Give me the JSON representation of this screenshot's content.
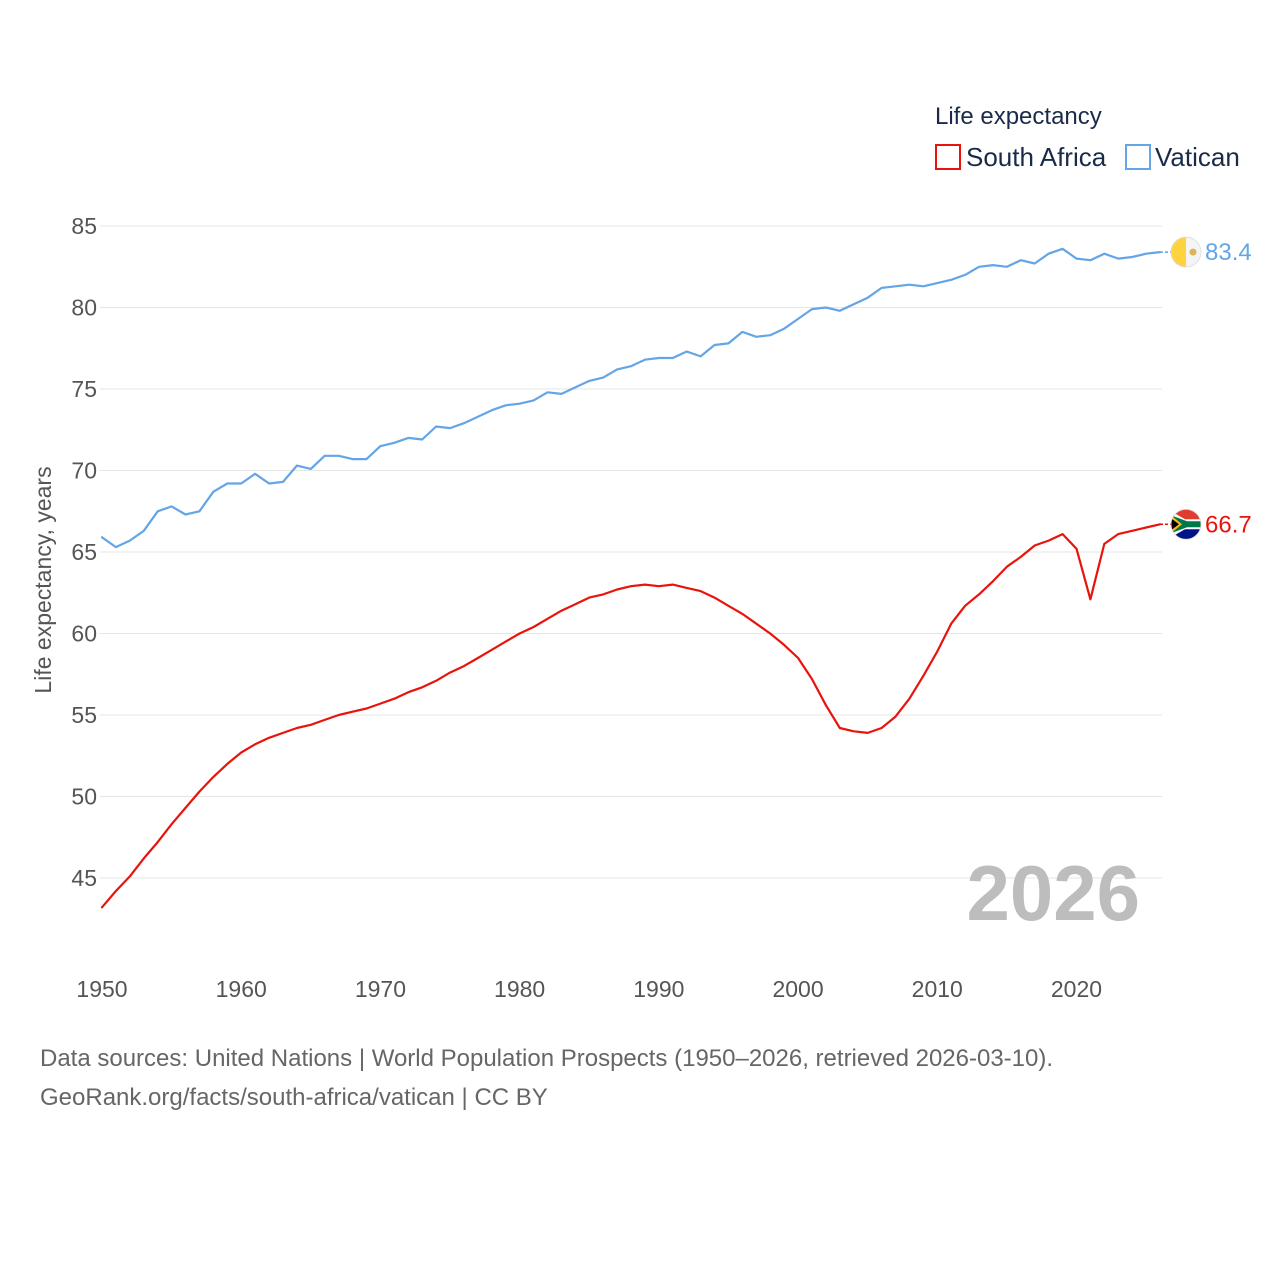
{
  "chart_data": {
    "type": "line",
    "title": "",
    "xlabel": "",
    "ylabel": "Life expectancy, years",
    "xlim": [
      1950,
      2026
    ],
    "ylim": [
      42,
      86
    ],
    "x_ticks": [
      1950,
      1960,
      1970,
      1980,
      1990,
      2000,
      2010,
      2020
    ],
    "y_ticks": [
      45,
      50,
      55,
      60,
      65,
      70,
      75,
      80,
      85
    ],
    "legend_title": "Life expectancy",
    "legend_position": "top-right",
    "grid": true,
    "current_year": "2026",
    "x": [
      1950,
      1951,
      1952,
      1953,
      1954,
      1955,
      1956,
      1957,
      1958,
      1959,
      1960,
      1961,
      1962,
      1963,
      1964,
      1965,
      1966,
      1967,
      1968,
      1969,
      1970,
      1971,
      1972,
      1973,
      1974,
      1975,
      1976,
      1977,
      1978,
      1979,
      1980,
      1981,
      1982,
      1983,
      1984,
      1985,
      1986,
      1987,
      1988,
      1989,
      1990,
      1991,
      1992,
      1993,
      1994,
      1995,
      1996,
      1997,
      1998,
      1999,
      2000,
      2001,
      2002,
      2003,
      2004,
      2005,
      2006,
      2007,
      2008,
      2009,
      2010,
      2011,
      2012,
      2013,
      2014,
      2015,
      2016,
      2017,
      2018,
      2019,
      2020,
      2021,
      2022,
      2023,
      2024,
      2025,
      2026
    ],
    "series": [
      {
        "name": "South Africa",
        "color": "#e8140c",
        "end_label": "66.7",
        "flag_icon": "south-africa-flag-icon",
        "values": [
          43.2,
          44.2,
          45.1,
          46.2,
          47.2,
          48.3,
          49.3,
          50.3,
          51.2,
          52.0,
          52.7,
          53.2,
          53.6,
          53.9,
          54.2,
          54.4,
          54.7,
          55.0,
          55.2,
          55.4,
          55.7,
          56.0,
          56.4,
          56.7,
          57.1,
          57.6,
          58.0,
          58.5,
          59.0,
          59.5,
          60.0,
          60.4,
          60.9,
          61.4,
          61.8,
          62.2,
          62.4,
          62.7,
          62.9,
          63.0,
          62.9,
          63.0,
          62.8,
          62.6,
          62.2,
          61.7,
          61.2,
          60.6,
          60.0,
          59.3,
          58.5,
          57.2,
          55.6,
          54.2,
          54.0,
          53.9,
          54.2,
          54.9,
          56.0,
          57.4,
          58.9,
          60.6,
          61.7,
          62.4,
          63.2,
          64.1,
          64.7,
          65.4,
          65.7,
          66.1,
          65.2,
          62.1,
          65.5,
          66.1,
          66.3,
          66.5,
          66.7
        ]
      },
      {
        "name": "Vatican",
        "color": "#63a5e6",
        "end_label": "83.4",
        "flag_icon": "vatican-flag-icon",
        "values": [
          65.9,
          65.3,
          65.7,
          66.3,
          67.5,
          67.8,
          67.3,
          67.5,
          68.7,
          69.2,
          69.2,
          69.8,
          69.2,
          69.3,
          70.3,
          70.1,
          70.9,
          70.9,
          70.7,
          70.7,
          71.5,
          71.7,
          72.0,
          71.9,
          72.7,
          72.6,
          72.9,
          73.3,
          73.7,
          74.0,
          74.1,
          74.3,
          74.8,
          74.7,
          75.1,
          75.5,
          75.7,
          76.2,
          76.4,
          76.8,
          76.9,
          76.9,
          77.3,
          77.0,
          77.7,
          77.8,
          78.5,
          78.2,
          78.3,
          78.7,
          79.3,
          79.9,
          80.0,
          79.8,
          80.2,
          80.6,
          81.2,
          81.3,
          81.4,
          81.3,
          81.5,
          81.7,
          82.0,
          82.5,
          82.6,
          82.5,
          82.9,
          82.7,
          83.3,
          83.6,
          83.0,
          82.9,
          83.3,
          83.0,
          83.1,
          83.3,
          83.4
        ]
      }
    ]
  },
  "footer": {
    "sources": "Data sources: United Nations | World Population Prospects (1950–2026, retrieved 2026-03-10).",
    "attribution": "GeoRank.org/facts/south-africa/vatican | CC BY"
  }
}
